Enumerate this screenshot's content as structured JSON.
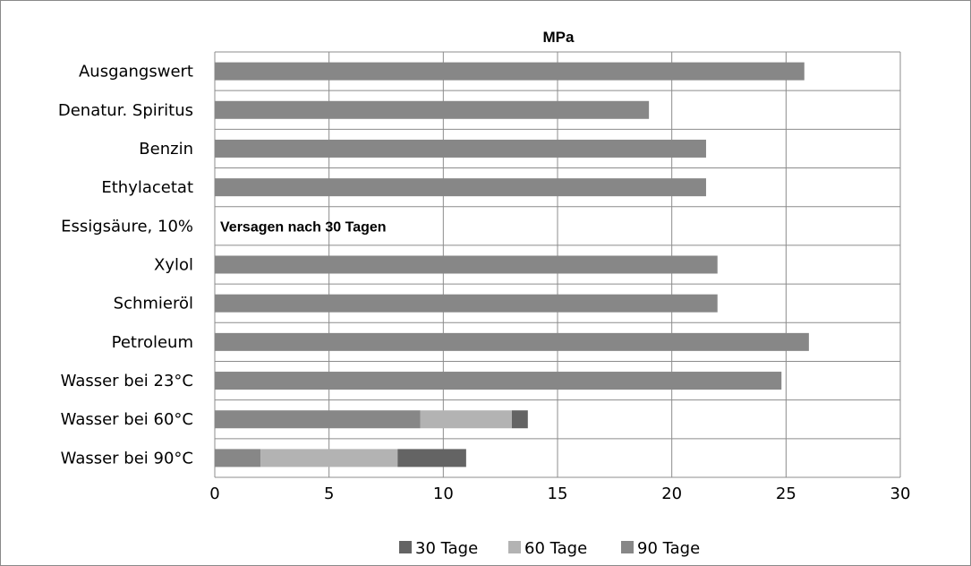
{
  "chart_data": {
    "type": "bar",
    "orientation": "horizontal",
    "stacked": true,
    "title": "MPa",
    "categories": [
      "Ausgangswert",
      "Denatur. Spiritus",
      "Benzin",
      "Ethylacetat",
      "Essigsäure, 10%",
      "Xylol",
      "Schmieröl",
      "Petroleum",
      "Wasser bei 23°C",
      "Wasser bei 60°C",
      "Wasser bei 90°C"
    ],
    "series": [
      {
        "name": "90 Tage",
        "color": "#878787",
        "values": [
          25.8,
          19.0,
          21.5,
          21.5,
          0,
          22.0,
          22.0,
          26.0,
          24.8,
          9.0,
          2.0
        ]
      },
      {
        "name": "60 Tage",
        "color": "#b3b3b3",
        "values": [
          0,
          0,
          0,
          0,
          0,
          0,
          0,
          0,
          0,
          4.0,
          6.0
        ]
      },
      {
        "name": "30 Tage",
        "color": "#646464",
        "values": [
          0,
          0,
          0,
          0,
          0,
          0,
          0,
          0,
          0,
          0.7,
          3.0
        ]
      }
    ],
    "legend_order": [
      "30 Tage",
      "60 Tage",
      "90 Tage"
    ],
    "xlim": [
      0,
      30
    ],
    "xticks": [
      0,
      5,
      10,
      15,
      20,
      25,
      30
    ],
    "grid": true,
    "legend_position": "bottom",
    "annotations": [
      {
        "category": "Essigsäure, 10%",
        "text": "Versagen nach 30 Tagen"
      }
    ]
  }
}
